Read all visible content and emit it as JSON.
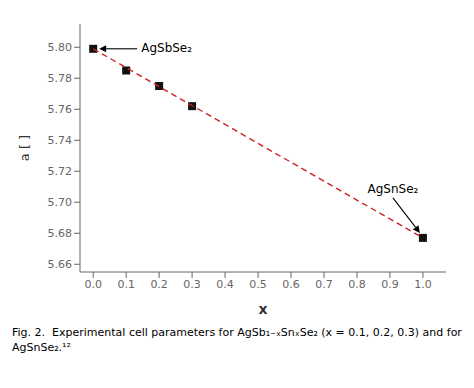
{
  "chart_data": {
    "type": "scatter",
    "xlabel": "x",
    "ylabel": "a [ ]",
    "x": [
      0.0,
      0.1,
      0.2,
      0.3,
      1.0
    ],
    "series": [
      {
        "type": "scatter",
        "marker": "square",
        "color": "#111111",
        "values": [
          5.799,
          5.785,
          5.775,
          5.762,
          5.677
        ]
      },
      {
        "type": "line",
        "line_style": "dashed",
        "color": "#cc2222",
        "x": [
          0.0,
          1.0
        ],
        "values": [
          5.799,
          5.677
        ]
      }
    ],
    "xlim": [
      -0.04,
      1.07
    ],
    "ylim": [
      5.655,
      5.815
    ],
    "xticks": [
      {
        "value": 0.0,
        "label": "0.0"
      },
      0.1,
      0.2,
      0.3,
      0.4,
      0.5,
      0.6,
      0.7,
      0.8,
      0.9,
      {
        "value": 1.0,
        "label": "1.0"
      }
    ],
    "yticks": [
      5.66,
      5.68,
      {
        "value": 5.7,
        "label": "5.70"
      },
      5.72,
      5.74,
      5.76,
      5.78,
      {
        "value": 5.8,
        "label": "5.80"
      }
    ],
    "grid": false,
    "annotations": [
      {
        "text": "AgSbSe₂",
        "x": 0.0,
        "y": 5.799
      },
      {
        "text": "AgSnSe₂",
        "x": 1.0,
        "y": 5.677
      },
      {
        "text": "Fig. 2.  Experimental cell parameters for AgSb₁₋ₓSnₓSe₂ (x = 0.1, 0.2, 0.3) and for AgSnSe₂.¹²"
      }
    ]
  }
}
